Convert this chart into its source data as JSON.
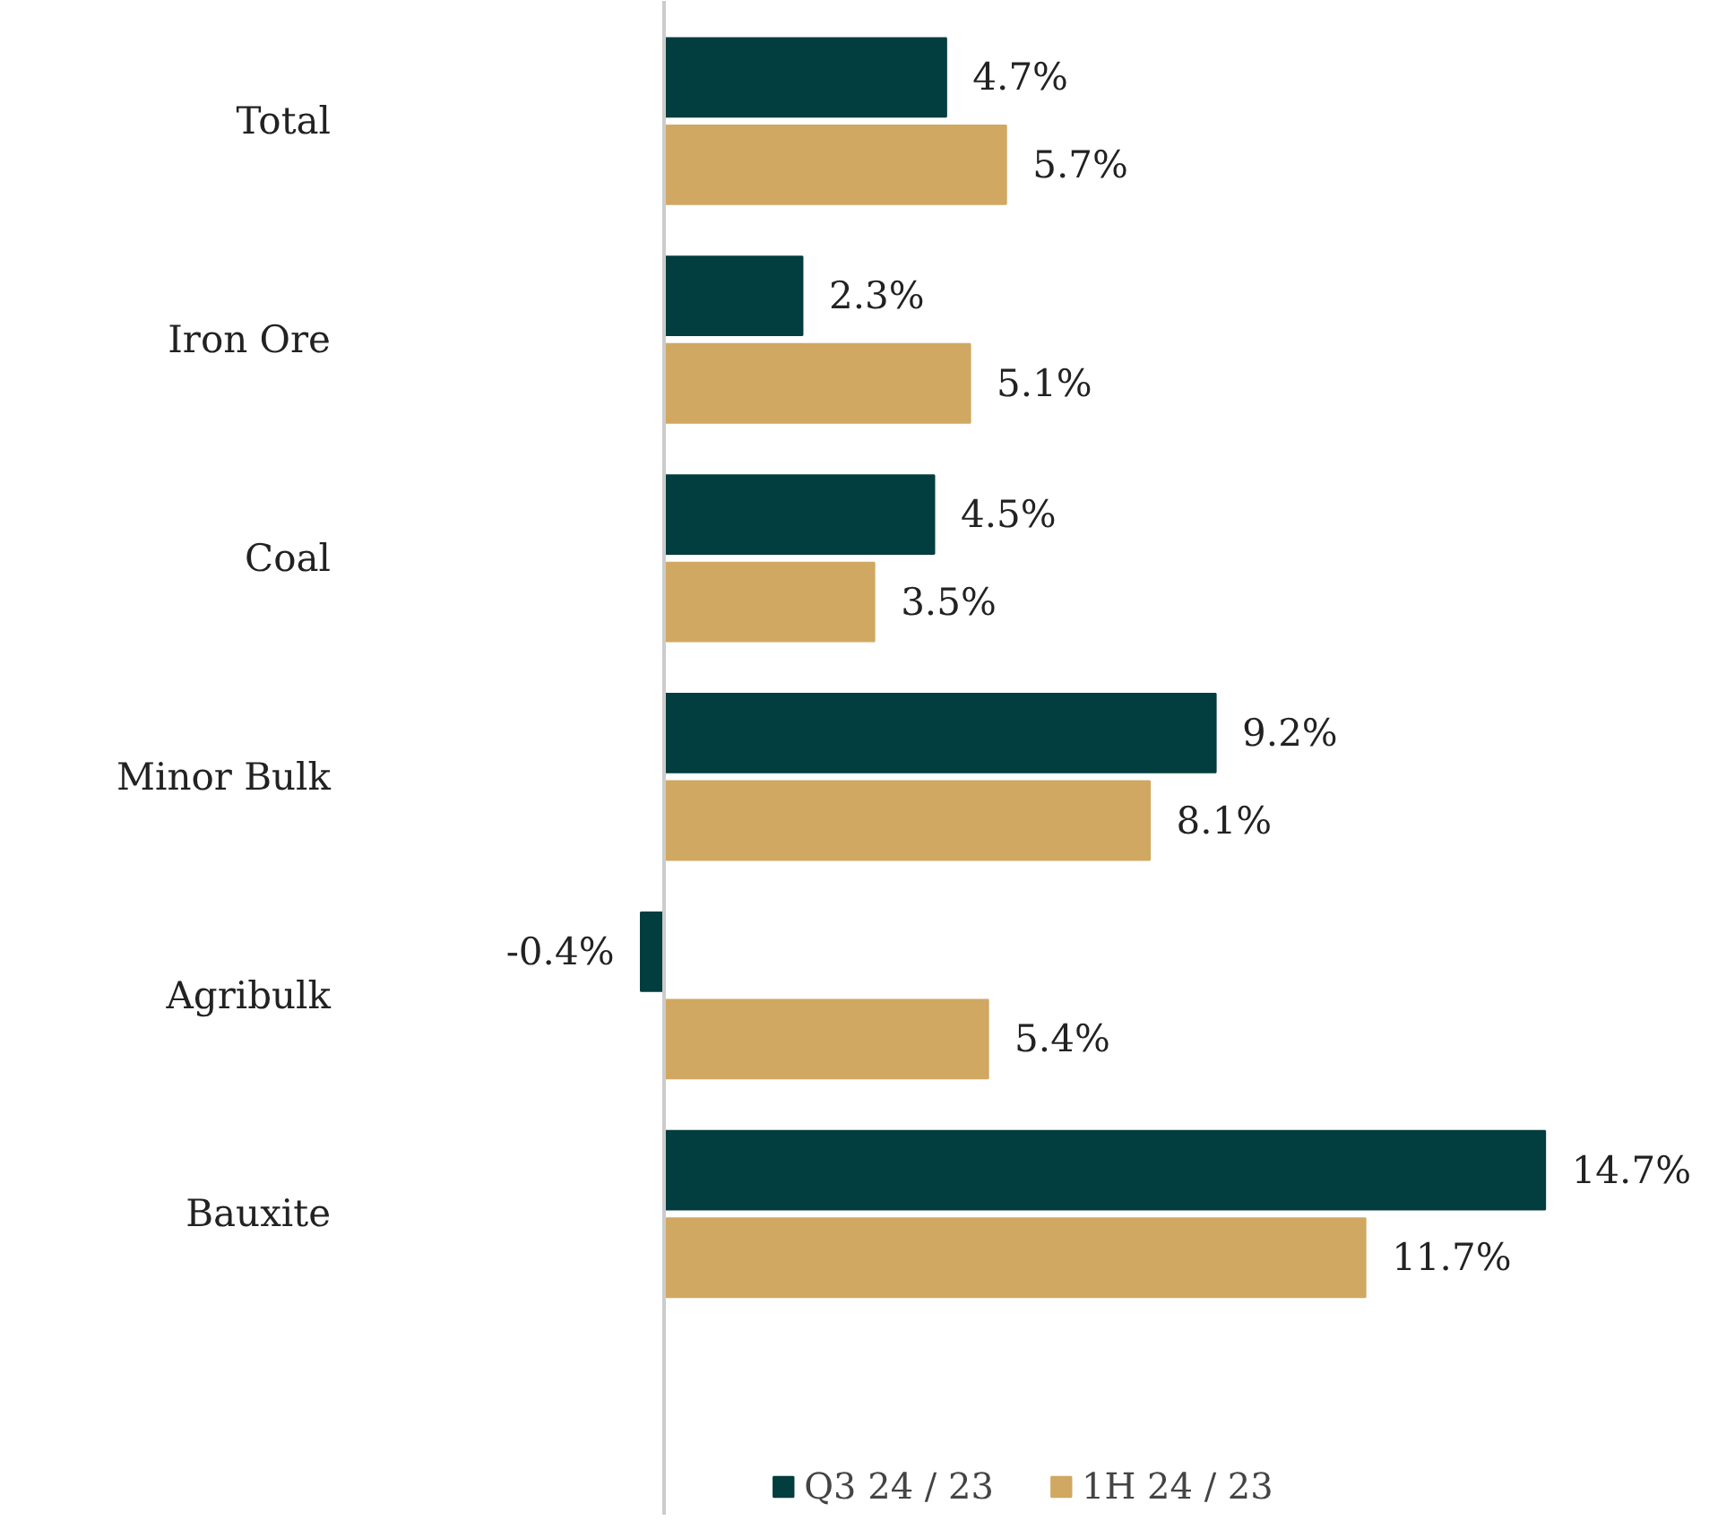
{
  "chart_data": {
    "type": "bar",
    "orientation": "horizontal",
    "legend": "bottom",
    "grid": false,
    "categories": [
      "Total",
      "Iron Ore",
      "Coal",
      "Minor Bulk",
      "Agribulk",
      "Bauxite"
    ],
    "series": [
      {
        "name": "Q3 24 / 23",
        "color": "#023d3f",
        "values": [
          4.7,
          2.3,
          4.5,
          9.2,
          -0.4,
          14.7
        ],
        "value_labels": [
          "4.7%",
          "2.3%",
          "4.5%",
          "9.2%",
          "-0.4%",
          "14.7%"
        ]
      },
      {
        "name": "1H 24 / 23",
        "color": "#d0a862",
        "values": [
          5.7,
          5.1,
          3.5,
          8.1,
          5.4,
          11.7
        ],
        "value_labels": [
          "5.7%",
          "5.1%",
          "3.5%",
          "8.1%",
          "5.4%",
          "11.7%"
        ]
      }
    ]
  }
}
